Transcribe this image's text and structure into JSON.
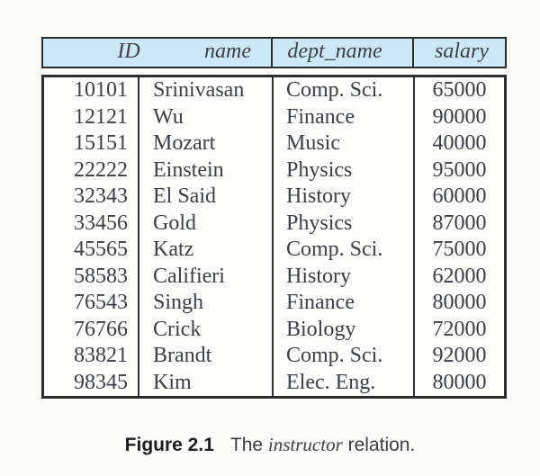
{
  "table": {
    "columns": [
      {
        "key": "id",
        "label": "ID"
      },
      {
        "key": "name",
        "label": "name"
      },
      {
        "key": "dept_name",
        "label": "dept_name"
      },
      {
        "key": "salary",
        "label": "salary"
      }
    ],
    "rows": [
      {
        "id": "10101",
        "name": "Srinivasan",
        "dept_name": "Comp. Sci.",
        "salary": "65000"
      },
      {
        "id": "12121",
        "name": "Wu",
        "dept_name": "Finance",
        "salary": "90000"
      },
      {
        "id": "15151",
        "name": "Mozart",
        "dept_name": "Music",
        "salary": "40000"
      },
      {
        "id": "22222",
        "name": "Einstein",
        "dept_name": "Physics",
        "salary": "95000"
      },
      {
        "id": "32343",
        "name": "El Said",
        "dept_name": "History",
        "salary": "60000"
      },
      {
        "id": "33456",
        "name": "Gold",
        "dept_name": "Physics",
        "salary": "87000"
      },
      {
        "id": "45565",
        "name": "Katz",
        "dept_name": "Comp. Sci.",
        "salary": "75000"
      },
      {
        "id": "58583",
        "name": "Califieri",
        "dept_name": "History",
        "salary": "62000"
      },
      {
        "id": "76543",
        "name": "Singh",
        "dept_name": "Finance",
        "salary": "80000"
      },
      {
        "id": "76766",
        "name": "Crick",
        "dept_name": "Biology",
        "salary": "72000"
      },
      {
        "id": "83821",
        "name": "Brandt",
        "dept_name": "Comp. Sci.",
        "salary": "92000"
      },
      {
        "id": "98345",
        "name": "Kim",
        "dept_name": "Elec. Eng.",
        "salary": "80000"
      }
    ]
  },
  "caption": {
    "label": "Figure 2.1",
    "before": "The",
    "emphasis": "instructor",
    "after": "relation."
  },
  "colors": {
    "page_background": "#fbfbf9",
    "header_fill": "#cce7f5",
    "border": "#2d2d2d",
    "text": "#3b3f46",
    "caption_label": "#1e1e1e",
    "caption_text": "#3e3e3e"
  }
}
